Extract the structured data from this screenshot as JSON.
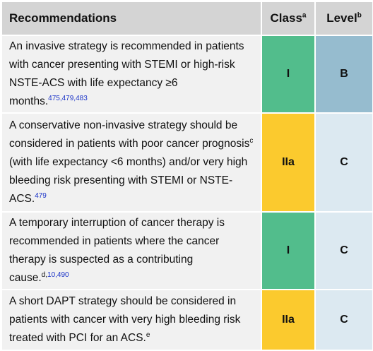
{
  "header": {
    "recommendations": "Recommendations",
    "class": "Class",
    "class_note": "a",
    "level": "Level",
    "level_note": "b"
  },
  "rows": [
    {
      "parts": [
        {
          "text": "An invasive strategy is recommended in patients with cancer presenting with STEMI or high-risk NSTE-ACS with life expectancy ≥6 months."
        },
        {
          "ref": "475,479,483"
        }
      ],
      "class": "I",
      "level": "B"
    },
    {
      "parts": [
        {
          "text": "A conservative non-invasive strategy should be considered in patients with poor cancer prognosis"
        },
        {
          "sup": "c"
        },
        {
          "text": " (with life expectancy <6 months) and/or very high bleeding risk presenting with STEMI or NSTE-ACS."
        },
        {
          "ref": "479"
        }
      ],
      "class": "IIa",
      "level": "C"
    },
    {
      "parts": [
        {
          "text": "A temporary interruption of cancer therapy is recommended in patients where the cancer therapy is suspected as a contributing cause."
        },
        {
          "sup": "d,"
        },
        {
          "ref": "10,490"
        }
      ],
      "class": "I",
      "level": "C"
    },
    {
      "parts": [
        {
          "text": "A short DAPT strategy should be considered in patients with cancer with very high bleeding risk treated with PCI for an ACS."
        },
        {
          "sup": "e"
        }
      ],
      "class": "IIa",
      "level": "C"
    }
  ]
}
